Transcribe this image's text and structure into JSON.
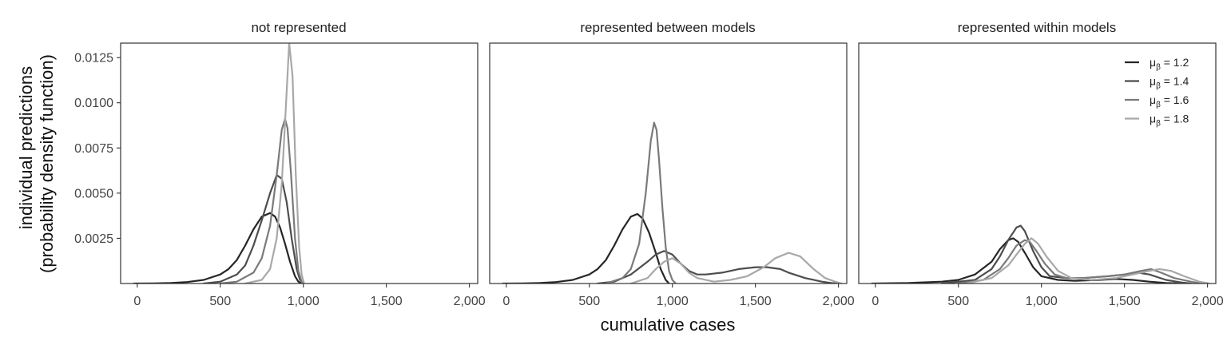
{
  "chart_data": {
    "type": "line",
    "xlabel": "cumulative cases",
    "ylabel_lines": [
      "individual predictions",
      "(probability density function)"
    ],
    "xlim": [
      -100,
      2050
    ],
    "ylim": [
      0,
      0.0133
    ],
    "x_ticks": [
      0,
      500,
      1000,
      1500,
      2000
    ],
    "x_tick_labels": [
      "0",
      "500",
      "1,000",
      "1,500",
      "2,000"
    ],
    "y_ticks": [
      0.0025,
      0.005,
      0.0075,
      0.01,
      0.0125
    ],
    "y_tick_labels": [
      "0.0025",
      "0.0050",
      "0.0075",
      "0.0100",
      "0.0125"
    ],
    "grid": false,
    "legend": {
      "placement": "top-right",
      "panel": 2,
      "entries": [
        {
          "series": "mu12",
          "label_main": "μ",
          "label_sub": "β",
          "label_value": " = 1.2"
        },
        {
          "series": "mu14",
          "label_main": "μ",
          "label_sub": "β",
          "label_value": " = 1.4"
        },
        {
          "series": "mu16",
          "label_main": "μ",
          "label_sub": "β",
          "label_value": " = 1.6"
        },
        {
          "series": "mu18",
          "label_main": "μ",
          "label_sub": "β",
          "label_value": " = 1.8"
        }
      ]
    },
    "colors": {
      "mu12": "#262626",
      "mu14": "#4d4d4d",
      "mu16": "#7a7a7a",
      "mu18": "#a8a8a8"
    },
    "panels": [
      {
        "title": "not represented",
        "series": [
          {
            "key": "mu12",
            "points": [
              [
                -20,
                0
              ],
              [
                100,
                1e-05
              ],
              [
                200,
                3e-05
              ],
              [
                300,
                8e-05
              ],
              [
                400,
                0.0002
              ],
              [
                500,
                0.0005
              ],
              [
                550,
                0.0008
              ],
              [
                600,
                0.0013
              ],
              [
                650,
                0.0021
              ],
              [
                700,
                0.003
              ],
              [
                750,
                0.0037
              ],
              [
                800,
                0.0039
              ],
              [
                830,
                0.0037
              ],
              [
                860,
                0.0031
              ],
              [
                890,
                0.0022
              ],
              [
                920,
                0.0012
              ],
              [
                950,
                0.0004
              ],
              [
                970,
                0.0001
              ],
              [
                990,
                0
              ]
            ]
          },
          {
            "key": "mu14",
            "points": [
              [
                400,
                0
              ],
              [
                500,
                0.0001
              ],
              [
                600,
                0.0005
              ],
              [
                650,
                0.001
              ],
              [
                700,
                0.0021
              ],
              [
                750,
                0.0035
              ],
              [
                800,
                0.005
              ],
              [
                840,
                0.006
              ],
              [
                870,
                0.0058
              ],
              [
                900,
                0.0045
              ],
              [
                930,
                0.0025
              ],
              [
                960,
                0.0008
              ],
              [
                980,
                0.0002
              ],
              [
                1000,
                0
              ]
            ]
          },
          {
            "key": "mu16",
            "points": [
              [
                500,
                0
              ],
              [
                600,
                0.0001
              ],
              [
                700,
                0.0006
              ],
              [
                750,
                0.0014
              ],
              [
                800,
                0.0032
              ],
              [
                840,
                0.006
              ],
              [
                870,
                0.0085
              ],
              [
                890,
                0.0091
              ],
              [
                905,
                0.0086
              ],
              [
                925,
                0.0062
              ],
              [
                950,
                0.0025
              ],
              [
                970,
                0.0007
              ],
              [
                990,
                0.0001
              ],
              [
                1000,
                0
              ]
            ]
          },
          {
            "key": "mu18",
            "points": [
              [
                650,
                0
              ],
              [
                750,
                0.0002
              ],
              [
                800,
                0.0008
              ],
              [
                840,
                0.0025
              ],
              [
                870,
                0.0055
              ],
              [
                895,
                0.0098
              ],
              [
                915,
                0.0133
              ],
              [
                935,
                0.0115
              ],
              [
                955,
                0.006
              ],
              [
                975,
                0.002
              ],
              [
                990,
                0.0005
              ],
              [
                1005,
                0
              ]
            ]
          }
        ]
      },
      {
        "title": "represented between models",
        "series": [
          {
            "key": "mu12",
            "points": [
              [
                -20,
                0
              ],
              [
                100,
                1e-05
              ],
              [
                200,
                3e-05
              ],
              [
                300,
                8e-05
              ],
              [
                400,
                0.0002
              ],
              [
                500,
                0.0005
              ],
              [
                550,
                0.0008
              ],
              [
                600,
                0.0013
              ],
              [
                650,
                0.0021
              ],
              [
                700,
                0.003
              ],
              [
                750,
                0.0037
              ],
              [
                790,
                0.00385
              ],
              [
                820,
                0.0036
              ],
              [
                860,
                0.0028
              ],
              [
                900,
                0.0017
              ],
              [
                930,
                0.0008
              ],
              [
                960,
                0.0002
              ],
              [
                980,
                0
              ]
            ]
          },
          {
            "key": "mu14",
            "points": [
              [
                550,
                0
              ],
              [
                650,
                0.0001
              ],
              [
                750,
                0.0005
              ],
              [
                850,
                0.0012
              ],
              [
                900,
                0.0016
              ],
              [
                950,
                0.0018
              ],
              [
                1000,
                0.0016
              ],
              [
                1050,
                0.0011
              ],
              [
                1100,
                0.0007
              ],
              [
                1150,
                0.0005
              ],
              [
                1200,
                0.0005
              ],
              [
                1300,
                0.0006
              ],
              [
                1400,
                0.0008
              ],
              [
                1500,
                0.0009
              ],
              [
                1570,
                0.0009
              ],
              [
                1650,
                0.0008
              ],
              [
                1700,
                0.0006
              ],
              [
                1800,
                0.0003
              ],
              [
                1900,
                0.0001
              ],
              [
                1960,
                2e-05
              ],
              [
                2000,
                0
              ]
            ]
          },
          {
            "key": "mu16",
            "points": [
              [
                600,
                0
              ],
              [
                700,
                0.0003
              ],
              [
                750,
                0.0008
              ],
              [
                800,
                0.0022
              ],
              [
                840,
                0.005
              ],
              [
                870,
                0.0079
              ],
              [
                890,
                0.0089
              ],
              [
                905,
                0.0085
              ],
              [
                920,
                0.0068
              ],
              [
                940,
                0.0042
              ],
              [
                960,
                0.002
              ],
              [
                980,
                0.0007
              ],
              [
                1000,
                0.0002
              ],
              [
                1020,
                0
              ]
            ]
          },
          {
            "key": "mu18",
            "points": [
              [
                750,
                0
              ],
              [
                850,
                0.0003
              ],
              [
                900,
                0.0008
              ],
              [
                950,
                0.0012
              ],
              [
                1000,
                0.0014
              ],
              [
                1050,
                0.0011
              ],
              [
                1100,
                0.0006
              ],
              [
                1150,
                0.0003
              ],
              [
                1250,
                0.0001
              ],
              [
                1350,
                0.0002
              ],
              [
                1450,
                0.0004
              ],
              [
                1550,
                0.0009
              ],
              [
                1620,
                0.0014
              ],
              [
                1700,
                0.0017
              ],
              [
                1770,
                0.0015
              ],
              [
                1850,
                0.0008
              ],
              [
                1920,
                0.0003
              ],
              [
                1980,
                0.0001
              ],
              [
                2020,
                0
              ]
            ]
          }
        ]
      },
      {
        "title": "represented within models",
        "series": [
          {
            "key": "mu12",
            "points": [
              [
                -20,
                0
              ],
              [
                200,
                3e-05
              ],
              [
                400,
                0.0001
              ],
              [
                500,
                0.0002
              ],
              [
                600,
                0.0005
              ],
              [
                700,
                0.0012
              ],
              [
                750,
                0.0019
              ],
              [
                800,
                0.0024
              ],
              [
                830,
                0.0025
              ],
              [
                860,
                0.0023
              ],
              [
                900,
                0.0017
              ],
              [
                950,
                0.0009
              ],
              [
                1000,
                0.0004
              ],
              [
                1100,
                0.0002
              ],
              [
                1200,
                0.00015
              ],
              [
                1350,
                0.0002
              ],
              [
                1450,
                0.00025
              ],
              [
                1550,
                0.0002
              ],
              [
                1650,
                0.0001
              ],
              [
                1750,
                3e-05
              ],
              [
                1850,
                0
              ]
            ]
          },
          {
            "key": "mu14",
            "points": [
              [
                400,
                0
              ],
              [
                600,
                0.0002
              ],
              [
                700,
                0.0008
              ],
              [
                750,
                0.0015
              ],
              [
                800,
                0.0024
              ],
              [
                850,
                0.0031
              ],
              [
                875,
                0.0032
              ],
              [
                900,
                0.0029
              ],
              [
                950,
                0.0018
              ],
              [
                1000,
                0.0009
              ],
              [
                1050,
                0.0004
              ],
              [
                1150,
                0.0003
              ],
              [
                1250,
                0.0003
              ],
              [
                1400,
                0.0004
              ],
              [
                1500,
                0.0005
              ],
              [
                1580,
                0.0006
              ],
              [
                1650,
                0.0005
              ],
              [
                1750,
                0.0002
              ],
              [
                1850,
                5e-05
              ],
              [
                1900,
                0
              ]
            ]
          },
          {
            "key": "mu16",
            "points": [
              [
                500,
                0
              ],
              [
                650,
                0.0002
              ],
              [
                750,
                0.0008
              ],
              [
                800,
                0.0014
              ],
              [
                850,
                0.0021
              ],
              [
                900,
                0.0024
              ],
              [
                930,
                0.0023
              ],
              [
                970,
                0.0018
              ],
              [
                1020,
                0.0011
              ],
              [
                1080,
                0.0005
              ],
              [
                1150,
                0.0003
              ],
              [
                1250,
                0.0003
              ],
              [
                1400,
                0.0004
              ],
              [
                1500,
                0.0005
              ],
              [
                1600,
                0.0007
              ],
              [
                1660,
                0.0008
              ],
              [
                1720,
                0.0006
              ],
              [
                1800,
                0.0003
              ],
              [
                1900,
                0.0001
              ],
              [
                1960,
                0
              ]
            ]
          },
          {
            "key": "mu18",
            "points": [
              [
                550,
                0
              ],
              [
                700,
                0.0003
              ],
              [
                800,
                0.001
              ],
              [
                850,
                0.0016
              ],
              [
                900,
                0.0022
              ],
              [
                940,
                0.0025
              ],
              [
                980,
                0.0022
              ],
              [
                1030,
                0.0015
              ],
              [
                1100,
                0.0007
              ],
              [
                1180,
                0.0003
              ],
              [
                1300,
                0.0002
              ],
              [
                1450,
                0.0003
              ],
              [
                1550,
                0.0005
              ],
              [
                1650,
                0.0007
              ],
              [
                1710,
                0.0008
              ],
              [
                1780,
                0.0007
              ],
              [
                1860,
                0.0004
              ],
              [
                1950,
                0.0001
              ],
              [
                2010,
                0
              ]
            ]
          }
        ]
      }
    ]
  }
}
